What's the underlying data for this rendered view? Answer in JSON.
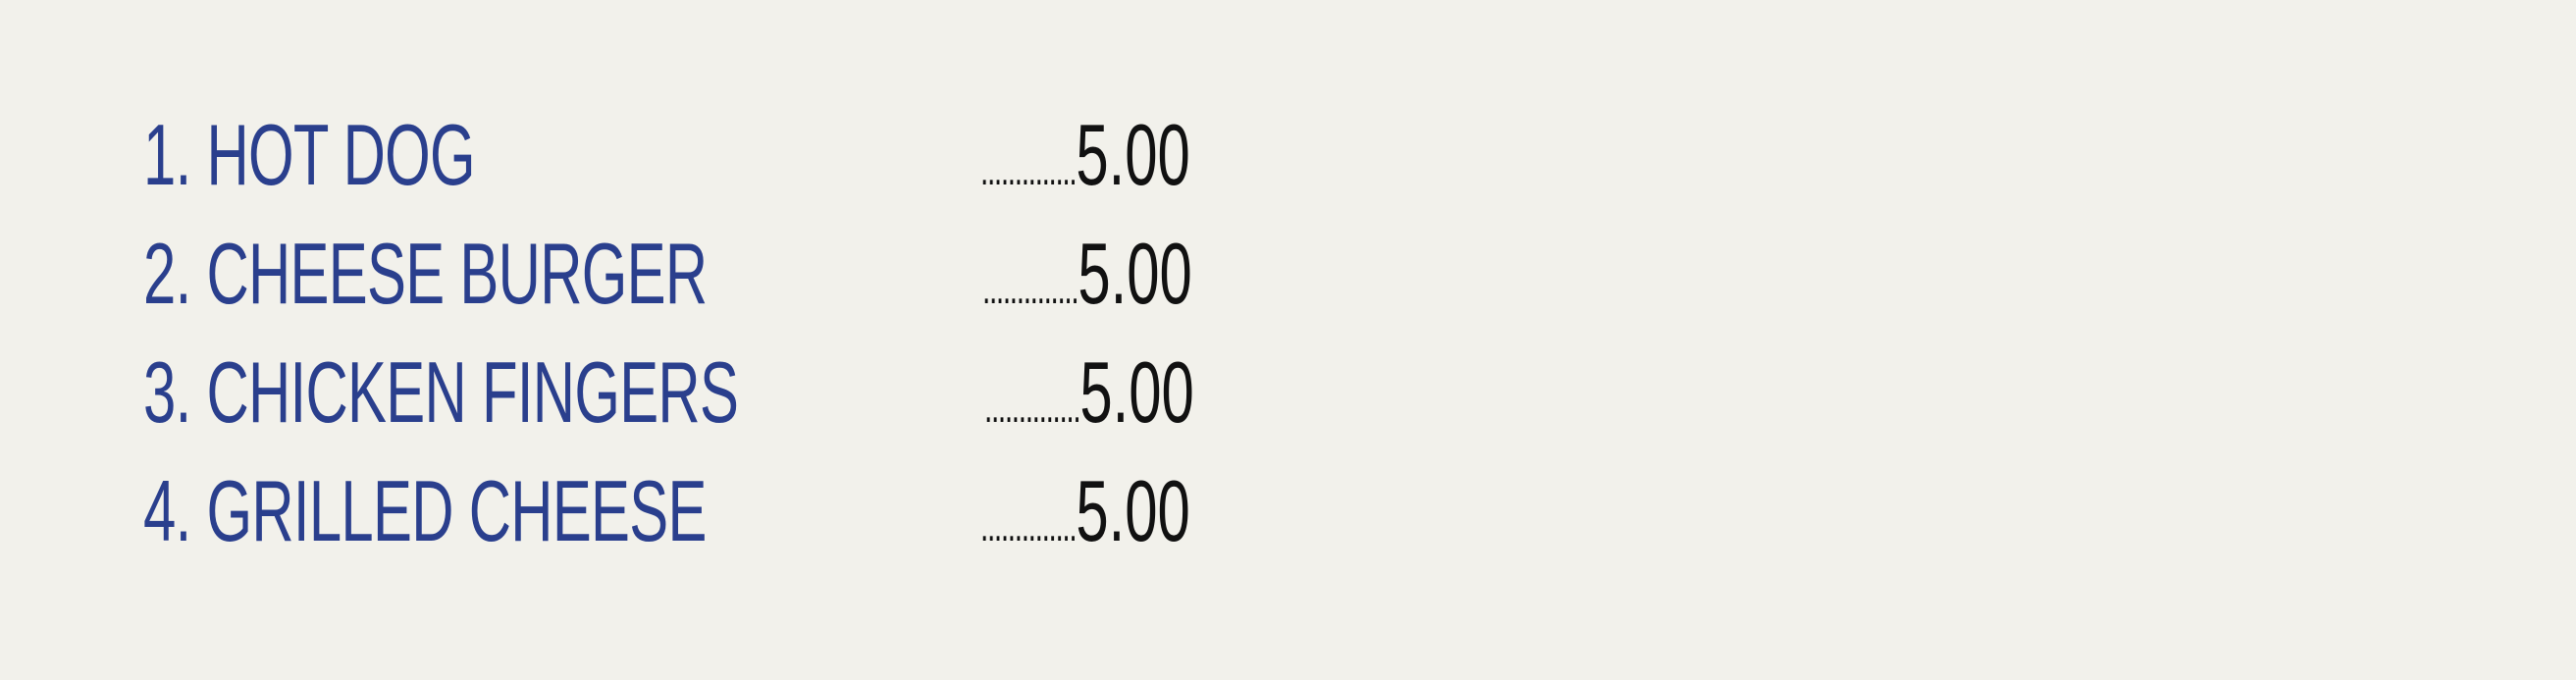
{
  "colors": {
    "background": "#f2f1eb",
    "item_text": "#2a3f8d",
    "price_text": "#111111"
  },
  "menu": {
    "items": [
      {
        "label": "1. HOT DOG",
        "leader": "..............",
        "price": "5.00"
      },
      {
        "label": "2. CHEESE BURGER",
        "leader": "..............",
        "price": "5.00"
      },
      {
        "label": "3. CHICKEN FINGERS",
        "leader": "..............",
        "price": "5.00"
      },
      {
        "label": "4. GRILLED CHEESE",
        "leader": "..............",
        "price": "5.00"
      }
    ]
  }
}
